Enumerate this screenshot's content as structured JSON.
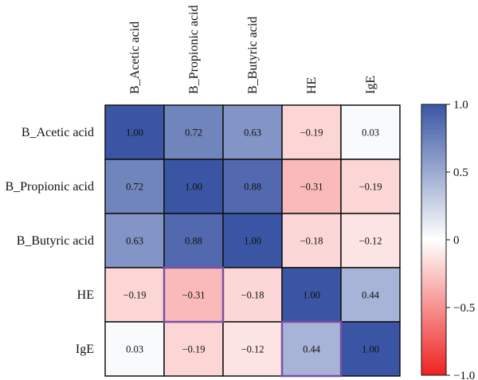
{
  "chart_data": {
    "type": "heatmap",
    "title": "",
    "rows": [
      "B_Acetic acid",
      "B_Propionic acid",
      "B_Butyric acid",
      "HE",
      "IgE"
    ],
    "columns": [
      "B_Acetic acid",
      "B_Propionic acid",
      "B_Butyric acid",
      "HE",
      "IgE"
    ],
    "values": [
      [
        1.0,
        0.72,
        0.63,
        -0.19,
        0.03
      ],
      [
        0.72,
        1.0,
        0.88,
        -0.31,
        -0.19
      ],
      [
        0.63,
        0.88,
        1.0,
        -0.18,
        -0.12
      ],
      [
        -0.19,
        -0.31,
        -0.18,
        1.0,
        0.44
      ],
      [
        0.03,
        -0.19,
        -0.12,
        0.44,
        1.0
      ]
    ],
    "value_labels": [
      [
        "1.00",
        "0.72",
        "0.63",
        "−0.19",
        "0.03"
      ],
      [
        "0.72",
        "1.00",
        "0.88",
        "−0.31",
        "−0.19"
      ],
      [
        "0.63",
        "0.88",
        "1.00",
        "−0.18",
        "−0.12"
      ],
      [
        "−0.19",
        "−0.31",
        "−0.18",
        "1.00",
        "0.44"
      ],
      [
        "0.03",
        "−0.19",
        "−0.12",
        "0.44",
        "1.00"
      ]
    ],
    "highlighted_cells": [
      [
        3,
        1
      ],
      [
        4,
        3
      ]
    ],
    "colorbar": {
      "range": [
        -1.0,
        1.0
      ],
      "ticks": [
        1.0,
        0.5,
        0,
        -0.5,
        -1.0
      ],
      "tick_labels": [
        "1.0",
        "0.5",
        "0",
        "−0.5",
        "−1.0"
      ],
      "colors": {
        "max": "#3a55a4",
        "mid": "#ffffff",
        "min": "#ee2222"
      }
    },
    "highlight_color": "#7b4fa3",
    "grid_color": "#111111"
  }
}
